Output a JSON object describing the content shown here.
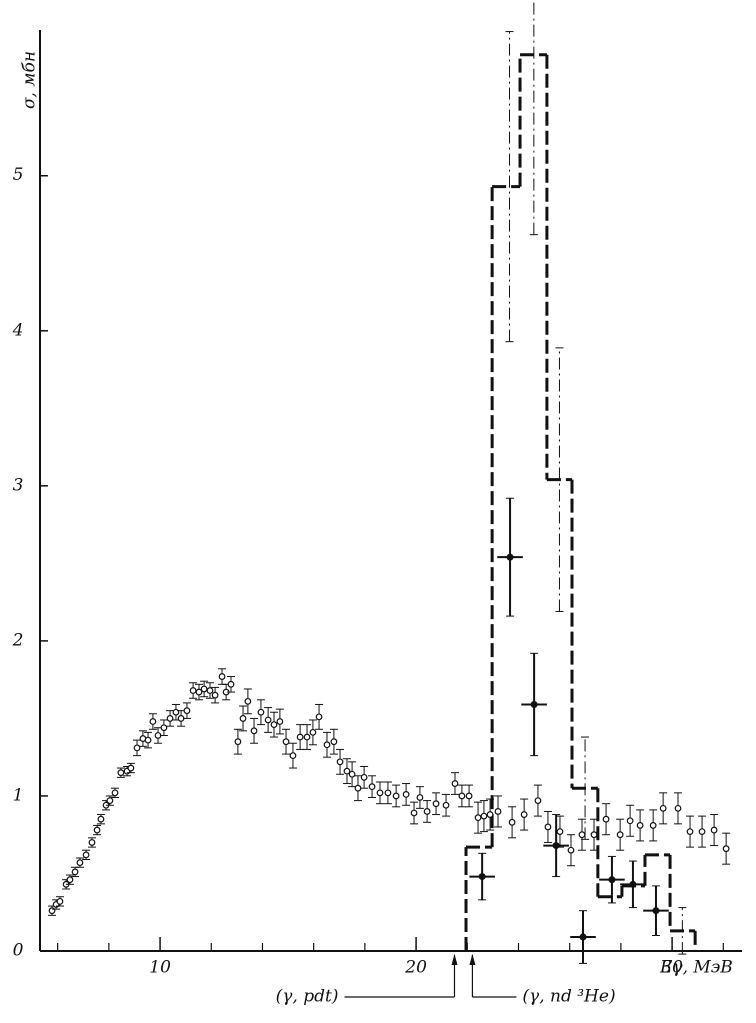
{
  "chart_data": {
    "type": "scatter",
    "ylabel": "σ, мбн",
    "xlabel": "Eγ, МэВ",
    "xlim": [
      5.31,
      32.73
    ],
    "ylim": [
      0,
      5.94
    ],
    "xticks": [
      10,
      20,
      30
    ],
    "xminorticks": [
      6,
      8,
      12,
      14,
      16,
      18,
      22,
      24,
      26,
      28,
      32
    ],
    "yticks": [
      0,
      1,
      2,
      3,
      4,
      5
    ],
    "series": [
      {
        "style": "open",
        "x": [
          5.78,
          5.94,
          6.09,
          6.33,
          6.48,
          6.68,
          6.87,
          7.11,
          7.34,
          7.54,
          7.69,
          7.89,
          8.04,
          8.24,
          8.47,
          8.71,
          8.86,
          9.1,
          9.33,
          9.53,
          9.72,
          9.92,
          10.15,
          10.39,
          10.62,
          10.82,
          11.05,
          11.29,
          11.52,
          11.72,
          11.95,
          12.15,
          12.42,
          12.58,
          12.77,
          13.04,
          13.24,
          13.43,
          13.67,
          13.94,
          14.22,
          14.45,
          14.68,
          14.92,
          15.19,
          15.47,
          15.74,
          15.97,
          16.21,
          16.52,
          16.79,
          17.03,
          17.3,
          17.5,
          17.73,
          17.97,
          18.28,
          18.59,
          18.9,
          19.22,
          19.61,
          19.92,
          20.15,
          20.43,
          20.78,
          21.17,
          21.52,
          21.79,
          22.07,
          22.42,
          22.65,
          22.89,
          23.2,
          23.75,
          24.22,
          24.76,
          25.15,
          25.62,
          26.05,
          26.48,
          26.95,
          27.42,
          27.97,
          28.36,
          28.75,
          29.26,
          29.65,
          30.23,
          30.7,
          31.17,
          31.64,
          32.11
        ],
        "values": [
          0.26,
          0.3,
          0.32,
          0.43,
          0.46,
          0.51,
          0.57,
          0.62,
          0.7,
          0.78,
          0.85,
          0.94,
          0.97,
          1.02,
          1.15,
          1.16,
          1.18,
          1.31,
          1.37,
          1.36,
          1.48,
          1.39,
          1.44,
          1.5,
          1.54,
          1.5,
          1.55,
          1.68,
          1.67,
          1.69,
          1.68,
          1.65,
          1.77,
          1.67,
          1.72,
          1.35,
          1.5,
          1.61,
          1.42,
          1.54,
          1.49,
          1.46,
          1.48,
          1.35,
          1.26,
          1.38,
          1.38,
          1.41,
          1.51,
          1.33,
          1.35,
          1.22,
          1.16,
          1.14,
          1.05,
          1.12,
          1.06,
          1.02,
          1.02,
          1.0,
          1.01,
          0.89,
          0.99,
          0.9,
          0.95,
          0.94,
          1.08,
          1.0,
          1.0,
          0.86,
          0.87,
          0.88,
          0.9,
          0.83,
          0.88,
          0.97,
          0.8,
          0.77,
          0.65,
          0.75,
          0.75,
          0.85,
          0.75,
          0.84,
          0.81,
          0.81,
          0.92,
          0.92,
          0.77,
          0.77,
          0.78,
          0.66
        ],
        "yerr": [
          0.03,
          0.03,
          0.03,
          0.03,
          0.03,
          0.03,
          0.03,
          0.03,
          0.03,
          0.03,
          0.03,
          0.03,
          0.03,
          0.03,
          0.03,
          0.03,
          0.03,
          0.05,
          0.05,
          0.05,
          0.05,
          0.05,
          0.05,
          0.05,
          0.05,
          0.05,
          0.05,
          0.05,
          0.05,
          0.05,
          0.05,
          0.05,
          0.05,
          0.05,
          0.05,
          0.08,
          0.08,
          0.08,
          0.08,
          0.08,
          0.08,
          0.08,
          0.08,
          0.08,
          0.08,
          0.08,
          0.08,
          0.08,
          0.08,
          0.08,
          0.08,
          0.08,
          0.08,
          0.08,
          0.08,
          0.07,
          0.07,
          0.07,
          0.07,
          0.07,
          0.07,
          0.07,
          0.07,
          0.07,
          0.07,
          0.07,
          0.07,
          0.07,
          0.07,
          0.1,
          0.1,
          0.1,
          0.1,
          0.1,
          0.1,
          0.1,
          0.1,
          0.1,
          0.1,
          0.1,
          0.1,
          0.1,
          0.1,
          0.1,
          0.1,
          0.1,
          0.1,
          0.1,
          0.1,
          0.1,
          0.1,
          0.1
        ]
      },
      {
        "style": "filled",
        "x": [
          22.58,
          23.67,
          24.61,
          25.47,
          26.52,
          27.65,
          28.47,
          29.37
        ],
        "values": [
          0.48,
          2.54,
          1.59,
          0.68,
          0.09,
          0.46,
          0.43,
          0.26
        ],
        "xerr": [
          0.5,
          0.5,
          0.5,
          0.5,
          0.5,
          0.5,
          0.5,
          0.5
        ],
        "yerr": [
          0.15,
          0.38,
          0.33,
          0.2,
          0.17,
          0.15,
          0.15,
          0.16
        ]
      },
      {
        "style": "dashdot",
        "x": [
          23.65,
          24.6,
          25.6,
          26.6,
          30.4
        ],
        "values": [
          4.93,
          5.78,
          3.04,
          1.05,
          0.13
        ],
        "yerr": [
          1.0,
          1.16,
          0.85,
          0.33,
          0.15
        ]
      }
    ],
    "histogram": {
      "bins": [
        21.95,
        22.97,
        24.06,
        25.11,
        26.09,
        27.1,
        28.04,
        28.94,
        29.92,
        30.9
      ],
      "counts": [
        0.67,
        4.93,
        5.78,
        3.04,
        1.05,
        0.35,
        0.42,
        0.62,
        0.13
      ]
    },
    "annotations": [
      {
        "text": "(γ, pdt)",
        "x": 21.5
      },
      {
        "text": "(γ, nd ³He)",
        "x": 22.2
      }
    ]
  }
}
